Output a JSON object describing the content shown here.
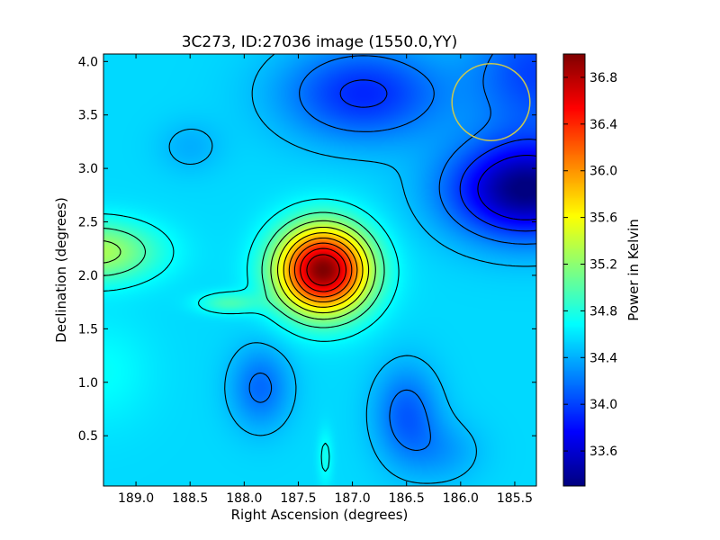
{
  "chart_data": {
    "type": "heatmap",
    "title": "3C273, ID:27036 image (1550.0,YY)",
    "xlabel": "Right Ascension (degrees)",
    "ylabel": "Declination (degrees)",
    "xlim": [
      189.3,
      185.3
    ],
    "ylim": [
      0.03,
      4.07
    ],
    "x_ticks": [
      189.0,
      188.5,
      188.0,
      187.5,
      187.0,
      186.5,
      186.0,
      185.5
    ],
    "x_tick_labels": [
      "189.0",
      "188.5",
      "188.0",
      "187.5",
      "187.0",
      "186.5",
      "186.0",
      "185.5"
    ],
    "y_ticks": [
      0.5,
      1.0,
      1.5,
      2.0,
      2.5,
      3.0,
      3.5,
      4.0
    ],
    "y_tick_labels": [
      "0.5",
      "1.0",
      "1.5",
      "2.0",
      "2.5",
      "3.0",
      "3.5",
      "4.0"
    ],
    "colorbar": {
      "label": "Power in Kelvin",
      "colormap": "jet",
      "range": [
        33.3,
        37.0
      ],
      "ticks": [
        33.6,
        34.0,
        34.4,
        34.8,
        35.2,
        35.6,
        36.0,
        36.4,
        36.8
      ],
      "tick_labels": [
        "33.6",
        "34.0",
        "34.4",
        "34.8",
        "35.2",
        "35.6",
        "36.0",
        "36.4",
        "36.8"
      ]
    },
    "contours": true,
    "contour_color": "#000000",
    "features": [
      {
        "kind": "peak",
        "ra": 187.27,
        "dec": 2.05,
        "value": 37.0
      },
      {
        "kind": "minimum",
        "ra": 185.5,
        "dec": 2.8,
        "value": 33.3
      },
      {
        "kind": "high",
        "ra": 189.3,
        "dec": 2.2,
        "value": 35.1
      },
      {
        "kind": "high",
        "ra": 188.1,
        "dec": 1.74,
        "value": 34.95
      }
    ],
    "beam_circle": {
      "ra": 185.72,
      "dec": 3.62,
      "radius_deg": 0.36,
      "color": "#c8c850"
    }
  }
}
